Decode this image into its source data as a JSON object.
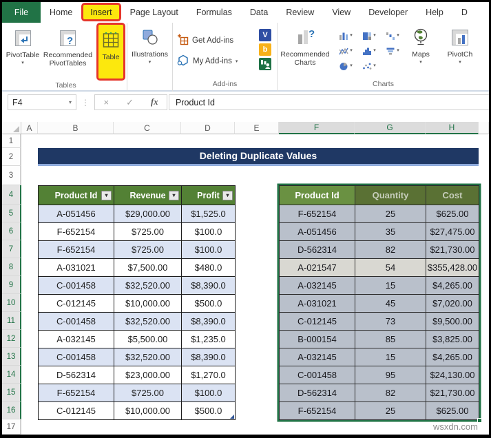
{
  "ribbon": {
    "tabs": [
      {
        "label": "File",
        "file": true
      },
      {
        "label": "Home"
      },
      {
        "label": "Insert",
        "highlighted": true
      },
      {
        "label": "Page Layout"
      },
      {
        "label": "Formulas"
      },
      {
        "label": "Data"
      },
      {
        "label": "Review"
      },
      {
        "label": "View"
      },
      {
        "label": "Developer"
      },
      {
        "label": "Help"
      },
      {
        "label": "D",
        "clipped": true
      }
    ],
    "groups": {
      "tables": {
        "label": "Tables",
        "pivottable": "PivotTable",
        "recommended_pivottables": "Recommended PivotTables",
        "table": "Table"
      },
      "illustrations": {
        "button": "Illustrations"
      },
      "addins": {
        "label": "Add-ins",
        "get_addins": "Get Add-ins",
        "my_addins": "My Add-ins"
      },
      "charts": {
        "label": "Charts",
        "recommended_charts": "Recommended Charts",
        "maps": "Maps",
        "pivotchart": "PivotCh"
      }
    }
  },
  "formula_bar": {
    "name_box": "F4",
    "fx_label": "fx",
    "formula": "Product Id"
  },
  "grid": {
    "column_headers": [
      "A",
      "B",
      "C",
      "D",
      "E",
      "F",
      "G",
      "H"
    ],
    "selected_columns": [
      "F",
      "G",
      "H"
    ],
    "row_count": 17,
    "selected_rows": [
      4,
      5,
      6,
      7,
      8,
      9,
      10,
      11,
      12,
      13,
      14,
      15,
      16
    ]
  },
  "sheet": {
    "banner_title": "Deleting Duplicate Values",
    "watermark": "wsxdn.com"
  },
  "left_table": {
    "headers": [
      "Product Id",
      "Revenue",
      "Profit"
    ],
    "rows": [
      [
        "A-051456",
        "$29,000.00",
        "$1,525.0"
      ],
      [
        "F-652154",
        "$725.00",
        "$100.0"
      ],
      [
        "F-652154",
        "$725.00",
        "$100.0"
      ],
      [
        "A-031021",
        "$7,500.00",
        "$480.0"
      ],
      [
        "C-001458",
        "$32,520.00",
        "$8,390.0"
      ],
      [
        "C-012145",
        "$10,000.00",
        "$500.0"
      ],
      [
        "C-001458",
        "$32,520.00",
        "$8,390.0"
      ],
      [
        "A-032145",
        "$5,500.00",
        "$1,235.0"
      ],
      [
        "C-001458",
        "$32,520.00",
        "$8,390.0"
      ],
      [
        "D-562314",
        "$23,000.00",
        "$1,270.0"
      ],
      [
        "F-652154",
        "$725.00",
        "$100.0"
      ],
      [
        "C-012145",
        "$10,000.00",
        "$500.0"
      ]
    ]
  },
  "right_table": {
    "headers": [
      "Product Id",
      "Quantity",
      "Cost"
    ],
    "rows": [
      [
        "F-652154",
        "25",
        "$625.00"
      ],
      [
        "A-051456",
        "35",
        "$27,475.00"
      ],
      [
        "D-562314",
        "82",
        "$21,730.00"
      ],
      [
        "A-021547",
        "54",
        "$355,428.00"
      ],
      [
        "A-032145",
        "15",
        "$4,265.00"
      ],
      [
        "A-031021",
        "45",
        "$7,020.00"
      ],
      [
        "C-012145",
        "73",
        "$9,500.00"
      ],
      [
        "B-000154",
        "85",
        "$3,825.00"
      ],
      [
        "A-032145",
        "15",
        "$4,265.00"
      ],
      [
        "C-001458",
        "95",
        "$24,130.00"
      ],
      [
        "D-562314",
        "82",
        "$21,730.00"
      ],
      [
        "F-652154",
        "25",
        "$625.00"
      ]
    ],
    "light_row_index": 3
  },
  "colors": {
    "excel_green": "#217346",
    "highlight_yellow": "#fce80d",
    "highlight_red": "#e5352b",
    "banner_navy": "#1f3864",
    "banner_underline": "#8eaadb",
    "table_header_green": "#538135",
    "band_lavender": "#dbe3f3",
    "selection_gray": "#b9c0cb"
  }
}
